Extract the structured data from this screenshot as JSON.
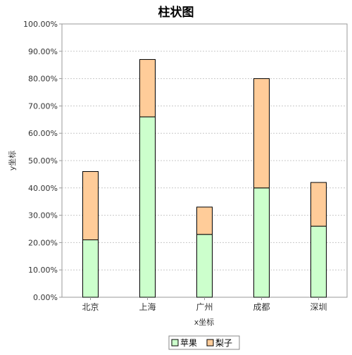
{
  "chart_data": {
    "type": "bar",
    "stacked": true,
    "title": "柱状图",
    "xlabel": "x坐标",
    "ylabel": "y坐标",
    "ylim": [
      0,
      100
    ],
    "y_tick_step": 10,
    "y_tick_labels": [
      "0.00%",
      "10.00%",
      "20.00%",
      "30.00%",
      "40.00%",
      "50.00%",
      "60.00%",
      "70.00%",
      "80.00%",
      "90.00%",
      "100.00%"
    ],
    "grid": true,
    "legend_position": "bottom",
    "categories": [
      "北京",
      "上海",
      "广州",
      "成都",
      "深圳"
    ],
    "series": [
      {
        "name": "苹果",
        "color": "#ccffcc",
        "values": [
          21,
          66,
          23,
          40,
          26
        ]
      },
      {
        "name": "梨子",
        "color": "#ffcc99",
        "values": [
          25,
          21,
          10,
          40,
          16
        ]
      }
    ]
  }
}
